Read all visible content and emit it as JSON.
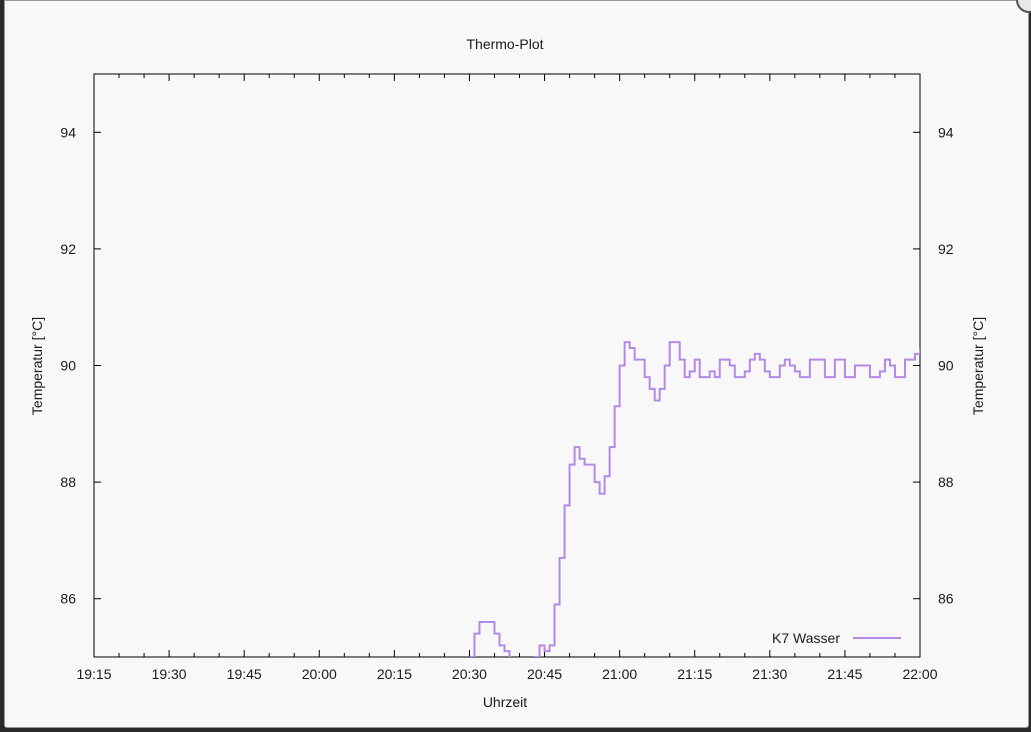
{
  "colors": {
    "series": "#b48ae6",
    "axis": "#000000",
    "background": "#f8f8f8"
  },
  "chart_data": {
    "type": "line",
    "title": "Thermo-Plot",
    "xlabel": "Uhrzeit",
    "ylabel": "Temperatur [°C]",
    "y2label": "Temperatur [°C]",
    "xlim": [
      "19:15",
      "22:00"
    ],
    "ylim": [
      85,
      95
    ],
    "x_ticks": [
      "19:15",
      "19:30",
      "19:45",
      "20:00",
      "20:15",
      "20:30",
      "20:45",
      "21:00",
      "21:15",
      "21:30",
      "21:45",
      "22:00"
    ],
    "y_ticks": [
      86,
      88,
      90,
      92,
      94
    ],
    "grid": false,
    "legend": {
      "position": "bottom-right"
    },
    "series": [
      {
        "name": "K7 Wasser",
        "color": "#b48ae6",
        "x": [
          "20:30",
          "20:31",
          "20:32",
          "20:33",
          "20:35",
          "20:36",
          "20:37",
          "20:38",
          "20:39",
          "20:42",
          "20:43",
          "20:44",
          "20:45",
          "20:46",
          "20:47",
          "20:48",
          "20:49",
          "20:50",
          "20:51",
          "20:52",
          "20:53",
          "20:54",
          "20:55",
          "20:56",
          "20:57",
          "20:58",
          "20:59",
          "21:00",
          "21:01",
          "21:02",
          "21:03",
          "21:04",
          "21:05",
          "21:06",
          "21:07",
          "21:08",
          "21:09",
          "21:10",
          "21:11",
          "21:12",
          "21:13",
          "21:14",
          "21:15",
          "21:16",
          "21:17",
          "21:18",
          "21:19",
          "21:20",
          "21:21",
          "21:22",
          "21:23",
          "21:24",
          "21:25",
          "21:26",
          "21:27",
          "21:28",
          "21:29",
          "21:30",
          "21:31",
          "21:32",
          "21:33",
          "21:34",
          "21:35",
          "21:36",
          "21:37",
          "21:38",
          "21:39",
          "21:40",
          "21:41",
          "21:42",
          "21:43",
          "21:44",
          "21:45",
          "21:46",
          "21:47",
          "21:48",
          "21:49",
          "21:50",
          "21:51",
          "21:52",
          "21:53",
          "21:54",
          "21:55",
          "21:56",
          "21:57",
          "21:58",
          "21:59",
          "22:00"
        ],
        "y": [
          85.0,
          85.4,
          85.6,
          85.6,
          85.4,
          85.2,
          85.1,
          84.8,
          84.7,
          84.8,
          85.0,
          85.2,
          85.1,
          85.2,
          85.9,
          86.7,
          87.6,
          88.3,
          88.6,
          88.4,
          88.3,
          88.3,
          88.0,
          87.8,
          88.1,
          88.6,
          89.3,
          90.0,
          90.4,
          90.3,
          90.1,
          90.1,
          89.8,
          89.6,
          89.4,
          89.6,
          90.0,
          90.4,
          90.4,
          90.1,
          89.8,
          89.9,
          90.1,
          89.8,
          89.8,
          89.9,
          89.8,
          90.1,
          90.1,
          90.0,
          89.8,
          89.8,
          89.9,
          90.1,
          90.2,
          90.1,
          89.9,
          89.8,
          89.8,
          90.0,
          90.1,
          90.0,
          89.9,
          89.8,
          89.8,
          90.1,
          90.1,
          90.1,
          89.8,
          89.8,
          90.1,
          90.1,
          89.8,
          89.8,
          90.0,
          90.0,
          90.0,
          89.8,
          89.8,
          89.9,
          90.1,
          90.0,
          89.8,
          89.8,
          90.1,
          90.1,
          90.2,
          90.3
        ]
      }
    ]
  }
}
